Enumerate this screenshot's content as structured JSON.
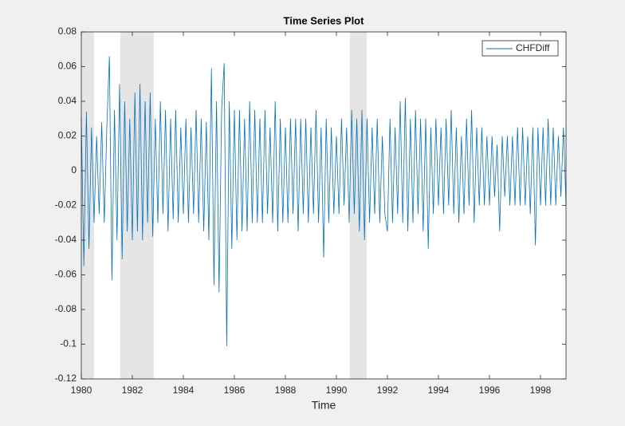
{
  "chart_data": {
    "type": "line",
    "title": "Time Series Plot",
    "x_label": "Time",
    "xlim": [
      1980,
      1999
    ],
    "xticks": [
      1980,
      1982,
      1984,
      1986,
      1988,
      1990,
      1992,
      1994,
      1996,
      1998
    ],
    "ylim": [
      -0.12,
      0.08
    ],
    "yticks": [
      0.08,
      0.06,
      0.04,
      0.02,
      0,
      -0.02,
      -0.04,
      -0.06,
      -0.08,
      -0.1,
      -0.12
    ],
    "legend": "top-right",
    "shaded_regions": [
      [
        1980,
        1980.5
      ],
      [
        1981.53,
        1982.84
      ],
      [
        1990.53,
        1991.19
      ]
    ],
    "shade_color": "#e5e5e5",
    "x": [
      1980,
      1980.1,
      1980.2,
      1980.3,
      1980.4,
      1980.5,
      1980.6,
      1980.7,
      1980.8,
      1980.9,
      1981,
      1981.1,
      1981.2,
      1981.3,
      1981.4,
      1981.5,
      1981.6,
      1981.7,
      1981.8,
      1981.9,
      1982,
      1982.1,
      1982.2,
      1982.3,
      1982.4,
      1982.5,
      1982.6,
      1982.7,
      1982.8,
      1982.9,
      1983,
      1983.1,
      1983.2,
      1983.3,
      1983.4,
      1983.5,
      1983.6,
      1983.7,
      1983.8,
      1983.9,
      1984,
      1984.1,
      1984.2,
      1984.3,
      1984.4,
      1984.5,
      1984.6,
      1984.7,
      1984.8,
      1984.9,
      1985,
      1985.1,
      1985.2,
      1985.3,
      1985.4,
      1985.5,
      1985.6,
      1985.7,
      1985.8,
      1985.9,
      1986,
      1986.1,
      1986.2,
      1986.3,
      1986.4,
      1986.5,
      1986.6,
      1986.7,
      1986.8,
      1986.9,
      1987,
      1987.1,
      1987.2,
      1987.3,
      1987.4,
      1987.5,
      1987.6,
      1987.7,
      1987.8,
      1987.9,
      1988,
      1988.1,
      1988.2,
      1988.3,
      1988.4,
      1988.5,
      1988.6,
      1988.7,
      1988.8,
      1988.9,
      1989,
      1989.1,
      1989.2,
      1989.3,
      1989.4,
      1989.5,
      1989.6,
      1989.7,
      1989.8,
      1989.9,
      1990,
      1990.1,
      1990.2,
      1990.3,
      1990.4,
      1990.5,
      1990.6,
      1990.7,
      1990.8,
      1990.9,
      1991,
      1991.1,
      1991.2,
      1991.3,
      1991.4,
      1991.5,
      1991.6,
      1991.7,
      1991.8,
      1991.9,
      1992,
      1992.1,
      1992.2,
      1992.3,
      1992.4,
      1992.5,
      1992.6,
      1992.7,
      1992.8,
      1992.9,
      1993,
      1993.1,
      1993.2,
      1993.3,
      1993.4,
      1993.5,
      1993.6,
      1993.7,
      1993.8,
      1993.9,
      1994,
      1994.1,
      1994.2,
      1994.3,
      1994.4,
      1994.5,
      1994.6,
      1994.7,
      1994.8,
      1994.9,
      1995,
      1995.1,
      1995.2,
      1995.3,
      1995.4,
      1995.5,
      1995.6,
      1995.7,
      1995.8,
      1995.9,
      1996,
      1996.1,
      1996.2,
      1996.3,
      1996.4,
      1996.5,
      1996.6,
      1996.7,
      1996.8,
      1996.9,
      1997,
      1997.1,
      1997.2,
      1997.3,
      1997.4,
      1997.5,
      1997.6,
      1997.7,
      1997.8,
      1997.9,
      1998,
      1998.1,
      1998.2,
      1998.3,
      1998.4,
      1998.5,
      1998.6,
      1998.7,
      1998.8,
      1998.9,
      1999
    ],
    "series": [
      {
        "name": "CHFDiff",
        "color": "#0072bd",
        "values": [
          0.03,
          -0.055,
          0.034,
          -0.045,
          0.025,
          -0.03,
          0.02,
          -0.025,
          0.028,
          -0.03,
          0.025,
          0.066,
          -0.063,
          0.035,
          -0.04,
          0.05,
          -0.051,
          0.04,
          -0.035,
          0.03,
          -0.04,
          0.045,
          -0.035,
          0.05,
          -0.04,
          0.04,
          -0.03,
          0.045,
          -0.038,
          0.03,
          -0.03,
          0.04,
          -0.025,
          0.035,
          -0.035,
          0.03,
          -0.028,
          0.035,
          -0.03,
          0.025,
          -0.025,
          0.03,
          -0.03,
          0.025,
          -0.025,
          0.035,
          -0.03,
          0.03,
          -0.035,
          0.028,
          -0.04,
          0.059,
          -0.066,
          0.04,
          -0.07,
          0.035,
          0.062,
          -0.101,
          0.04,
          -0.045,
          0.035,
          -0.04,
          0.035,
          -0.035,
          0.03,
          -0.035,
          0.04,
          -0.03,
          0.035,
          -0.03,
          0.03,
          -0.03,
          0.035,
          -0.025,
          0.025,
          -0.03,
          0.04,
          -0.035,
          0.03,
          -0.03,
          0.025,
          -0.03,
          0.03,
          -0.025,
          0.03,
          -0.035,
          0.03,
          -0.025,
          0.03,
          -0.03,
          0.025,
          -0.025,
          0.035,
          -0.03,
          0.025,
          -0.05,
          0.03,
          -0.03,
          0.025,
          -0.025,
          0.02,
          -0.025,
          0.03,
          -0.02,
          0.025,
          -0.03,
          0.035,
          -0.025,
          0.03,
          -0.035,
          0.035,
          -0.04,
          0.03,
          -0.03,
          0.025,
          -0.025,
          0.03,
          -0.03,
          0.02,
          -0.025,
          -0.035,
          0.03,
          -0.03,
          0.025,
          -0.025,
          0.04,
          -0.03,
          0.042,
          -0.035,
          0.03,
          -0.03,
          0.035,
          -0.025,
          0.03,
          -0.035,
          0.03,
          -0.045,
          0.025,
          -0.025,
          0.03,
          -0.02,
          0.025,
          -0.025,
          0.03,
          -0.02,
          0.035,
          -0.025,
          0.025,
          -0.03,
          0.02,
          -0.025,
          0.03,
          -0.02,
          0.035,
          -0.03,
          0.025,
          -0.02,
          0.025,
          -0.02,
          0.02,
          -0.02,
          0.02,
          -0.015,
          0.015,
          -0.035,
          0.02,
          -0.015,
          0.02,
          -0.02,
          0.02,
          -0.02,
          0.025,
          -0.02,
          0.025,
          -0.02,
          0.02,
          -0.025,
          0.025,
          -0.043,
          0.025,
          -0.02,
          0.025,
          -0.02,
          0.03,
          -0.02,
          0.025,
          -0.02,
          0.02,
          -0.015,
          0.025,
          -0.02
        ]
      }
    ]
  }
}
